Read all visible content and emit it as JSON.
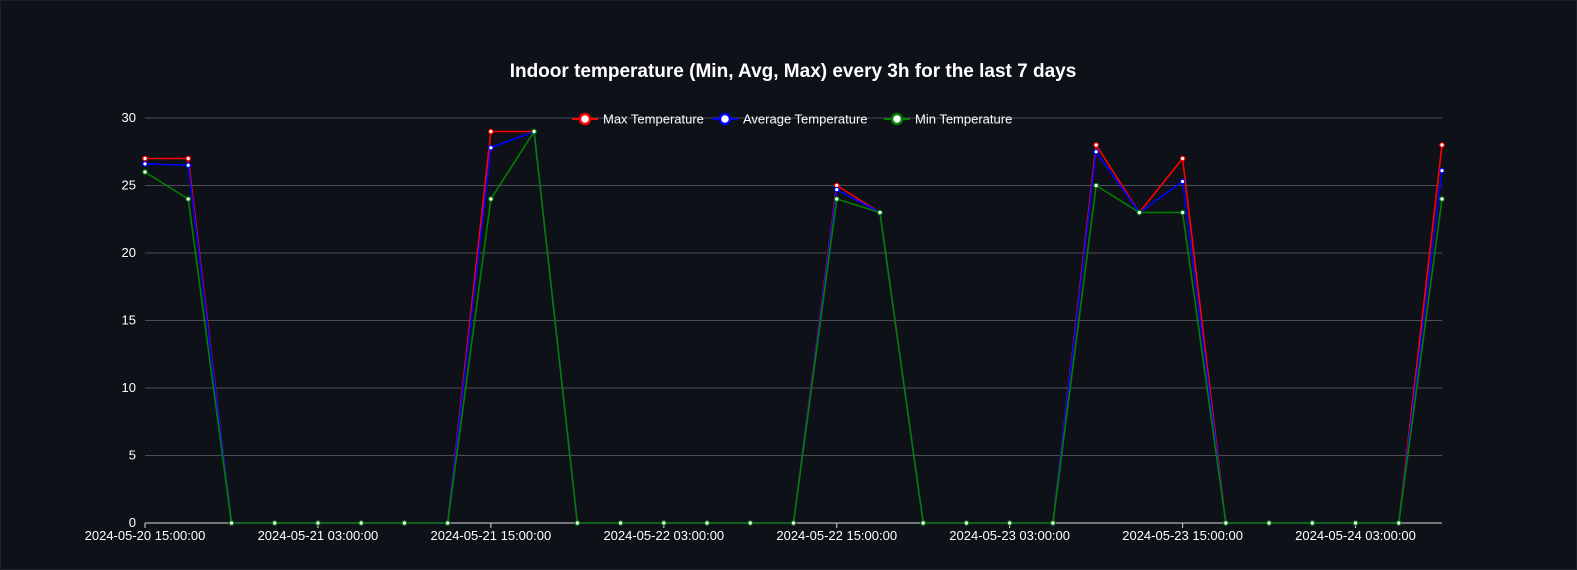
{
  "chart_data": {
    "type": "line",
    "title": "Indoor temperature (Min, Avg, Max) every 3h for the last 7 days",
    "xlabel": "",
    "ylabel": "",
    "ylim": [
      0,
      30
    ],
    "yticks": [
      0,
      5,
      10,
      15,
      20,
      25,
      30
    ],
    "grid": true,
    "legend_position": "top-center",
    "x": [
      "2024-05-20 15:00:00",
      "2024-05-20 18:00:00",
      "2024-05-20 21:00:00",
      "2024-05-21 00:00:00",
      "2024-05-21 03:00:00",
      "2024-05-21 06:00:00",
      "2024-05-21 09:00:00",
      "2024-05-21 12:00:00",
      "2024-05-21 15:00:00",
      "2024-05-21 18:00:00",
      "2024-05-21 21:00:00",
      "2024-05-22 00:00:00",
      "2024-05-22 03:00:00",
      "2024-05-22 06:00:00",
      "2024-05-22 09:00:00",
      "2024-05-22 12:00:00",
      "2024-05-22 15:00:00",
      "2024-05-22 18:00:00",
      "2024-05-22 21:00:00",
      "2024-05-23 00:00:00",
      "2024-05-23 03:00:00",
      "2024-05-23 06:00:00",
      "2024-05-23 09:00:00",
      "2024-05-23 12:00:00",
      "2024-05-23 15:00:00",
      "2024-05-23 18:00:00",
      "2024-05-23 21:00:00",
      "2024-05-24 00:00:00",
      "2024-05-24 03:00:00",
      "2024-05-24 06:00:00",
      "2024-05-24 09:00:00"
    ],
    "xtick_labels": [
      "2024-05-20 15:00:00",
      "2024-05-21 03:00:00",
      "2024-05-21 15:00:00",
      "2024-05-22 03:00:00",
      "2024-05-22 15:00:00",
      "2024-05-23 03:00:00",
      "2024-05-23 15:00:00",
      "2024-05-24 03:00:00"
    ],
    "series": [
      {
        "name": "Max Temperature",
        "color": "#ff0000",
        "values": [
          27,
          27,
          0,
          0,
          0,
          0,
          0,
          0,
          29,
          29,
          0,
          0,
          0,
          0,
          0,
          0,
          25,
          23,
          0,
          0,
          0,
          0,
          28,
          23,
          27,
          0,
          0,
          0,
          0,
          0,
          28
        ]
      },
      {
        "name": "Average Temperature",
        "color": "#0000ff",
        "values": [
          26.6,
          26.5,
          0,
          0,
          0,
          0,
          0,
          0,
          27.8,
          29,
          0,
          0,
          0,
          0,
          0,
          0,
          24.7,
          23,
          0,
          0,
          0,
          0,
          27.5,
          23,
          25.3,
          0,
          0,
          0,
          0,
          0,
          26.1
        ]
      },
      {
        "name": "Min Temperature",
        "color": "#008000",
        "values": [
          26,
          24,
          0,
          0,
          0,
          0,
          0,
          0,
          24,
          29,
          0,
          0,
          0,
          0,
          0,
          0,
          24,
          23,
          0,
          0,
          0,
          0,
          25,
          23,
          23,
          0,
          0,
          0,
          0,
          0,
          24
        ]
      }
    ]
  }
}
